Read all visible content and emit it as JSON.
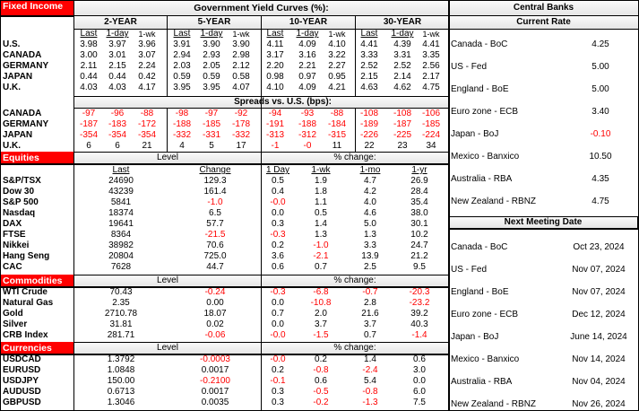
{
  "fixed_income": {
    "section_label": "Fixed Income",
    "title": "Government Yield Curves (%):",
    "tenors": [
      "2-YEAR",
      "5-YEAR",
      "10-YEAR",
      "30-YEAR"
    ],
    "subheads": [
      "Last",
      "1-day",
      "1-wk"
    ],
    "yields": [
      {
        "country": "U.S.",
        "values": [
          "3.98",
          "3.97",
          "3.96",
          "3.91",
          "3.90",
          "3.90",
          "4.11",
          "4.09",
          "4.10",
          "4.41",
          "4.39",
          "4.41"
        ]
      },
      {
        "country": "CANADA",
        "values": [
          "3.00",
          "3.01",
          "3.07",
          "2.94",
          "2.93",
          "2.98",
          "3.17",
          "3.16",
          "3.22",
          "3.33",
          "3.31",
          "3.35"
        ]
      },
      {
        "country": "GERMANY",
        "values": [
          "2.11",
          "2.15",
          "2.24",
          "2.03",
          "2.05",
          "2.12",
          "2.20",
          "2.21",
          "2.27",
          "2.52",
          "2.52",
          "2.56"
        ]
      },
      {
        "country": "JAPAN",
        "values": [
          "0.44",
          "0.44",
          "0.42",
          "0.59",
          "0.59",
          "0.58",
          "0.98",
          "0.97",
          "0.95",
          "2.15",
          "2.14",
          "2.17"
        ]
      },
      {
        "country": "U.K.",
        "values": [
          "4.03",
          "4.03",
          "4.17",
          "3.95",
          "3.95",
          "4.07",
          "4.10",
          "4.09",
          "4.21",
          "4.63",
          "4.62",
          "4.75"
        ]
      }
    ],
    "spreads_title": "Spreads vs. U.S. (bps):",
    "spreads": [
      {
        "country": "CANADA",
        "values": [
          "-97",
          "-96",
          "-88",
          "-98",
          "-97",
          "-92",
          "-94",
          "-93",
          "-88",
          "-108",
          "-108",
          "-106"
        ]
      },
      {
        "country": "GERMANY",
        "values": [
          "-187",
          "-183",
          "-172",
          "-188",
          "-185",
          "-178",
          "-191",
          "-188",
          "-184",
          "-189",
          "-187",
          "-185"
        ]
      },
      {
        "country": "JAPAN",
        "values": [
          "-354",
          "-354",
          "-354",
          "-332",
          "-331",
          "-332",
          "-313",
          "-312",
          "-315",
          "-226",
          "-225",
          "-224"
        ]
      },
      {
        "country": "U.K.",
        "values": [
          "6",
          "6",
          "21",
          "4",
          "5",
          "17",
          "-1",
          "-0",
          "11",
          "22",
          "23",
          "34"
        ]
      }
    ]
  },
  "equities": {
    "section_label": "Equities",
    "level_label": "Level",
    "pct_label": "% change:",
    "columns": [
      "Last",
      "Change",
      "1 Day",
      "1-wk",
      "1-mo",
      "1-yr"
    ],
    "rows": [
      {
        "name": "S&P/TSX",
        "values": [
          "24690",
          "129.3",
          "0.5",
          "1.9",
          "4.7",
          "26.9"
        ]
      },
      {
        "name": "Dow 30",
        "values": [
          "43239",
          "161.4",
          "0.4",
          "1.8",
          "4.2",
          "28.4"
        ]
      },
      {
        "name": "S&P 500",
        "values": [
          "5841",
          "-1.0",
          "-0.0",
          "1.1",
          "4.0",
          "35.4"
        ]
      },
      {
        "name": "Nasdaq",
        "values": [
          "18374",
          "6.5",
          "0.0",
          "0.5",
          "4.6",
          "38.0"
        ]
      },
      {
        "name": "DAX",
        "values": [
          "19641",
          "57.7",
          "0.3",
          "1.4",
          "5.0",
          "30.1"
        ]
      },
      {
        "name": "FTSE",
        "values": [
          "8364",
          "-21.5",
          "-0.3",
          "1.3",
          "1.3",
          "10.2"
        ]
      },
      {
        "name": "Nikkei",
        "values": [
          "38982",
          "70.6",
          "0.2",
          "-1.0",
          "3.3",
          "24.7"
        ]
      },
      {
        "name": "Hang Seng",
        "values": [
          "20804",
          "725.0",
          "3.6",
          "-2.1",
          "13.9",
          "21.2"
        ]
      },
      {
        "name": "CAC",
        "values": [
          "7628",
          "44.7",
          "0.6",
          "0.7",
          "2.5",
          "9.5"
        ]
      }
    ]
  },
  "commodities": {
    "section_label": "Commodities",
    "level_label": "Level",
    "pct_label": "% change:",
    "rows": [
      {
        "name": "WTI Crude",
        "values": [
          "70.43",
          "-0.24",
          "-0.3",
          "-6.8",
          "-0.7",
          "-20.3"
        ]
      },
      {
        "name": "Natural Gas",
        "values": [
          "2.35",
          "0.00",
          "0.0",
          "-10.8",
          "2.8",
          "-23.2"
        ]
      },
      {
        "name": "Gold",
        "values": [
          "2710.78",
          "18.07",
          "0.7",
          "2.0",
          "21.6",
          "39.2"
        ]
      },
      {
        "name": "Silver",
        "values": [
          "31.81",
          "0.02",
          "0.0",
          "3.7",
          "3.7",
          "40.3"
        ]
      },
      {
        "name": "CRB Index",
        "values": [
          "281.71",
          "-0.06",
          "-0.0",
          "-1.5",
          "0.7",
          "-1.4"
        ]
      }
    ]
  },
  "currencies": {
    "section_label": "Currencies",
    "level_label": "Level",
    "pct_label": "% change:",
    "rows": [
      {
        "name": "USDCAD",
        "values": [
          "1.3792",
          "-0.0003",
          "-0.0",
          "0.2",
          "1.4",
          "0.6"
        ]
      },
      {
        "name": "EURUSD",
        "values": [
          "1.0848",
          "0.0017",
          "0.2",
          "-0.8",
          "-2.4",
          "3.0"
        ]
      },
      {
        "name": "USDJPY",
        "values": [
          "150.00",
          "-0.2100",
          "-0.1",
          "0.6",
          "5.4",
          "0.0"
        ]
      },
      {
        "name": "AUDUSD",
        "values": [
          "0.6713",
          "0.0017",
          "0.3",
          "-0.5",
          "-0.8",
          "6.0"
        ]
      },
      {
        "name": "GBPUSD",
        "values": [
          "1.3046",
          "0.0035",
          "0.3",
          "-0.2",
          "-1.3",
          "7.5"
        ]
      }
    ]
  },
  "central_banks": {
    "title": "Central Banks",
    "current_rate_label": "Current Rate",
    "rates": [
      {
        "bank": "Canada - BoC",
        "value": "4.25"
      },
      {
        "bank": "US - Fed",
        "value": "5.00"
      },
      {
        "bank": "England - BoE",
        "value": "5.00"
      },
      {
        "bank": "Euro zone - ECB",
        "value": "3.40"
      },
      {
        "bank": "Japan - BoJ",
        "value": "-0.10"
      },
      {
        "bank": "Mexico - Banxico",
        "value": "10.50"
      },
      {
        "bank": "Australia - RBA",
        "value": "4.35"
      },
      {
        "bank": "New Zealand - RBNZ",
        "value": "4.75"
      }
    ],
    "next_meeting_label": "Next Meeting Date",
    "meetings": [
      {
        "bank": "Canada - BoC",
        "date": "Oct 23, 2024"
      },
      {
        "bank": "US - Fed",
        "date": "Nov 07, 2024"
      },
      {
        "bank": "England - BoE",
        "date": "Nov 07, 2024"
      },
      {
        "bank": "Euro zone - ECB",
        "date": "Dec 12, 2024"
      },
      {
        "bank": "Japan - BoJ",
        "date": "June 14, 2024"
      },
      {
        "bank": "Mexico - Banxico",
        "date": "Nov 14, 2024"
      },
      {
        "bank": "Australia - RBA",
        "date": "Nov 04, 2024"
      },
      {
        "bank": "New Zealand - RBNZ",
        "date": "Nov 26, 2024"
      }
    ]
  },
  "colors": {
    "section_red": "#ff0000",
    "negative_red": "#ff0000"
  }
}
